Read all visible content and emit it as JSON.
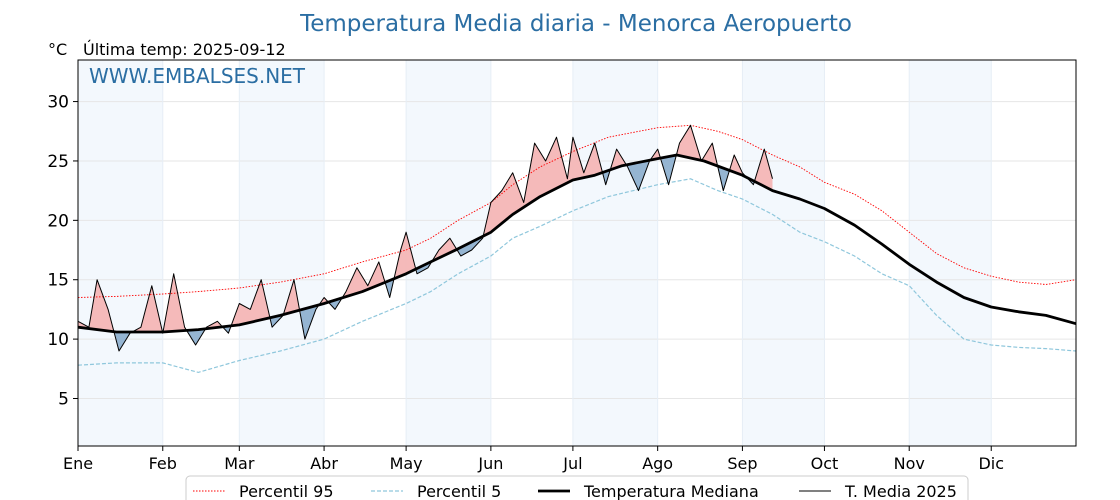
{
  "chart_data": {
    "type": "line",
    "title": "Temperatura Media diaria - Menorca Aeropuerto",
    "unit_label": "°C",
    "subtitle": "Última temp: 2025-09-12",
    "watermark": "WWW.EMBALSES.NET",
    "ylim": [
      1,
      33.5
    ],
    "y_ticks": [
      5,
      10,
      15,
      20,
      25,
      30
    ],
    "xlim": [
      1,
      366
    ],
    "months": [
      {
        "label": "Ene",
        "day": 1
      },
      {
        "label": "Feb",
        "day": 32
      },
      {
        "label": "Mar",
        "day": 60
      },
      {
        "label": "Abr",
        "day": 91
      },
      {
        "label": "May",
        "day": 121
      },
      {
        "label": "Jun",
        "day": 152
      },
      {
        "label": "Jul",
        "day": 182
      },
      {
        "label": "Ago",
        "day": 213
      },
      {
        "label": "Sep",
        "day": 244
      },
      {
        "label": "Oct",
        "day": 274
      },
      {
        "label": "Nov",
        "day": 305
      },
      {
        "label": "Dic",
        "day": 335
      }
    ],
    "grid": true,
    "legend_position": "bottom-center",
    "series": [
      {
        "name": "Percentil 95",
        "style": "dotted",
        "color": "#ff0000",
        "x": [
          1,
          15,
          32,
          45,
          60,
          75,
          91,
          105,
          121,
          130,
          140,
          152,
          160,
          170,
          182,
          195,
          213,
          225,
          235,
          244,
          255,
          265,
          274,
          285,
          295,
          305,
          315,
          325,
          335,
          345,
          355,
          366
        ],
        "values": [
          13.5,
          13.6,
          13.8,
          14.0,
          14.3,
          14.8,
          15.5,
          16.5,
          17.5,
          18.5,
          20.0,
          21.5,
          23.0,
          24.5,
          25.8,
          27.0,
          27.8,
          28.0,
          27.5,
          26.8,
          25.5,
          24.5,
          23.2,
          22.2,
          20.8,
          19.0,
          17.2,
          16.0,
          15.3,
          14.8,
          14.6,
          15.0
        ]
      },
      {
        "name": "Percentil 5",
        "style": "dashed",
        "color": "#8fc7dc",
        "x": [
          1,
          15,
          32,
          45,
          60,
          75,
          91,
          105,
          121,
          130,
          140,
          152,
          160,
          170,
          182,
          195,
          213,
          225,
          235,
          244,
          255,
          265,
          274,
          285,
          295,
          305,
          315,
          325,
          335,
          345,
          355,
          366
        ],
        "values": [
          7.8,
          8.0,
          8.0,
          7.2,
          8.2,
          9.0,
          10.0,
          11.5,
          13.0,
          14.0,
          15.5,
          17.0,
          18.5,
          19.5,
          20.8,
          22.0,
          23.0,
          23.5,
          22.5,
          21.8,
          20.5,
          19.0,
          18.2,
          17.0,
          15.5,
          14.5,
          12.0,
          10.0,
          9.5,
          9.3,
          9.2,
          9.0
        ]
      },
      {
        "name": "Temperatura Mediana",
        "style": "thick",
        "color": "#000000",
        "x": [
          1,
          15,
          32,
          45,
          60,
          75,
          91,
          105,
          121,
          130,
          140,
          152,
          160,
          170,
          182,
          190,
          200,
          213,
          220,
          230,
          244,
          255,
          265,
          274,
          285,
          295,
          305,
          315,
          325,
          335,
          345,
          355,
          366
        ],
        "values": [
          11.0,
          10.6,
          10.6,
          10.8,
          11.2,
          12.0,
          13.0,
          14.0,
          15.5,
          16.5,
          17.6,
          19.0,
          20.5,
          22.0,
          23.4,
          23.8,
          24.6,
          25.2,
          25.5,
          25.0,
          23.8,
          22.5,
          21.8,
          21.0,
          19.6,
          18.0,
          16.3,
          14.8,
          13.5,
          12.7,
          12.3,
          12.0,
          11.3
        ]
      },
      {
        "name": "T. Media 2025",
        "style": "solid",
        "color": "#000000",
        "x": [
          1,
          5,
          8,
          12,
          16,
          20,
          24,
          28,
          32,
          36,
          40,
          44,
          48,
          52,
          56,
          60,
          64,
          68,
          72,
          76,
          80,
          84,
          88,
          91,
          95,
          99,
          103,
          107,
          111,
          115,
          119,
          121,
          125,
          129,
          133,
          137,
          141,
          145,
          149,
          152,
          156,
          160,
          164,
          168,
          172,
          176,
          180,
          182,
          186,
          190,
          194,
          198,
          202,
          206,
          210,
          213,
          217,
          221,
          225,
          229,
          233,
          237,
          241,
          244,
          248,
          252,
          255
        ],
        "values": [
          11.5,
          11.0,
          15.0,
          12.5,
          9.0,
          10.5,
          11.0,
          14.5,
          10.5,
          15.5,
          11.0,
          9.5,
          11.0,
          11.5,
          10.5,
          13.0,
          12.5,
          15.0,
          11.0,
          12.0,
          15.0,
          10.0,
          12.5,
          13.5,
          12.5,
          14.0,
          16.0,
          14.5,
          16.5,
          13.5,
          17.5,
          19.0,
          15.5,
          16.0,
          17.5,
          18.5,
          17.0,
          17.5,
          18.5,
          21.5,
          22.5,
          24.0,
          21.5,
          26.5,
          25.0,
          27.0,
          23.5,
          27.0,
          24.0,
          26.5,
          23.0,
          26.0,
          24.5,
          22.5,
          25.0,
          26.0,
          23.0,
          26.5,
          28.0,
          25.0,
          26.5,
          22.5,
          25.5,
          24.0,
          23.0,
          26.0,
          23.5
        ]
      }
    ]
  }
}
